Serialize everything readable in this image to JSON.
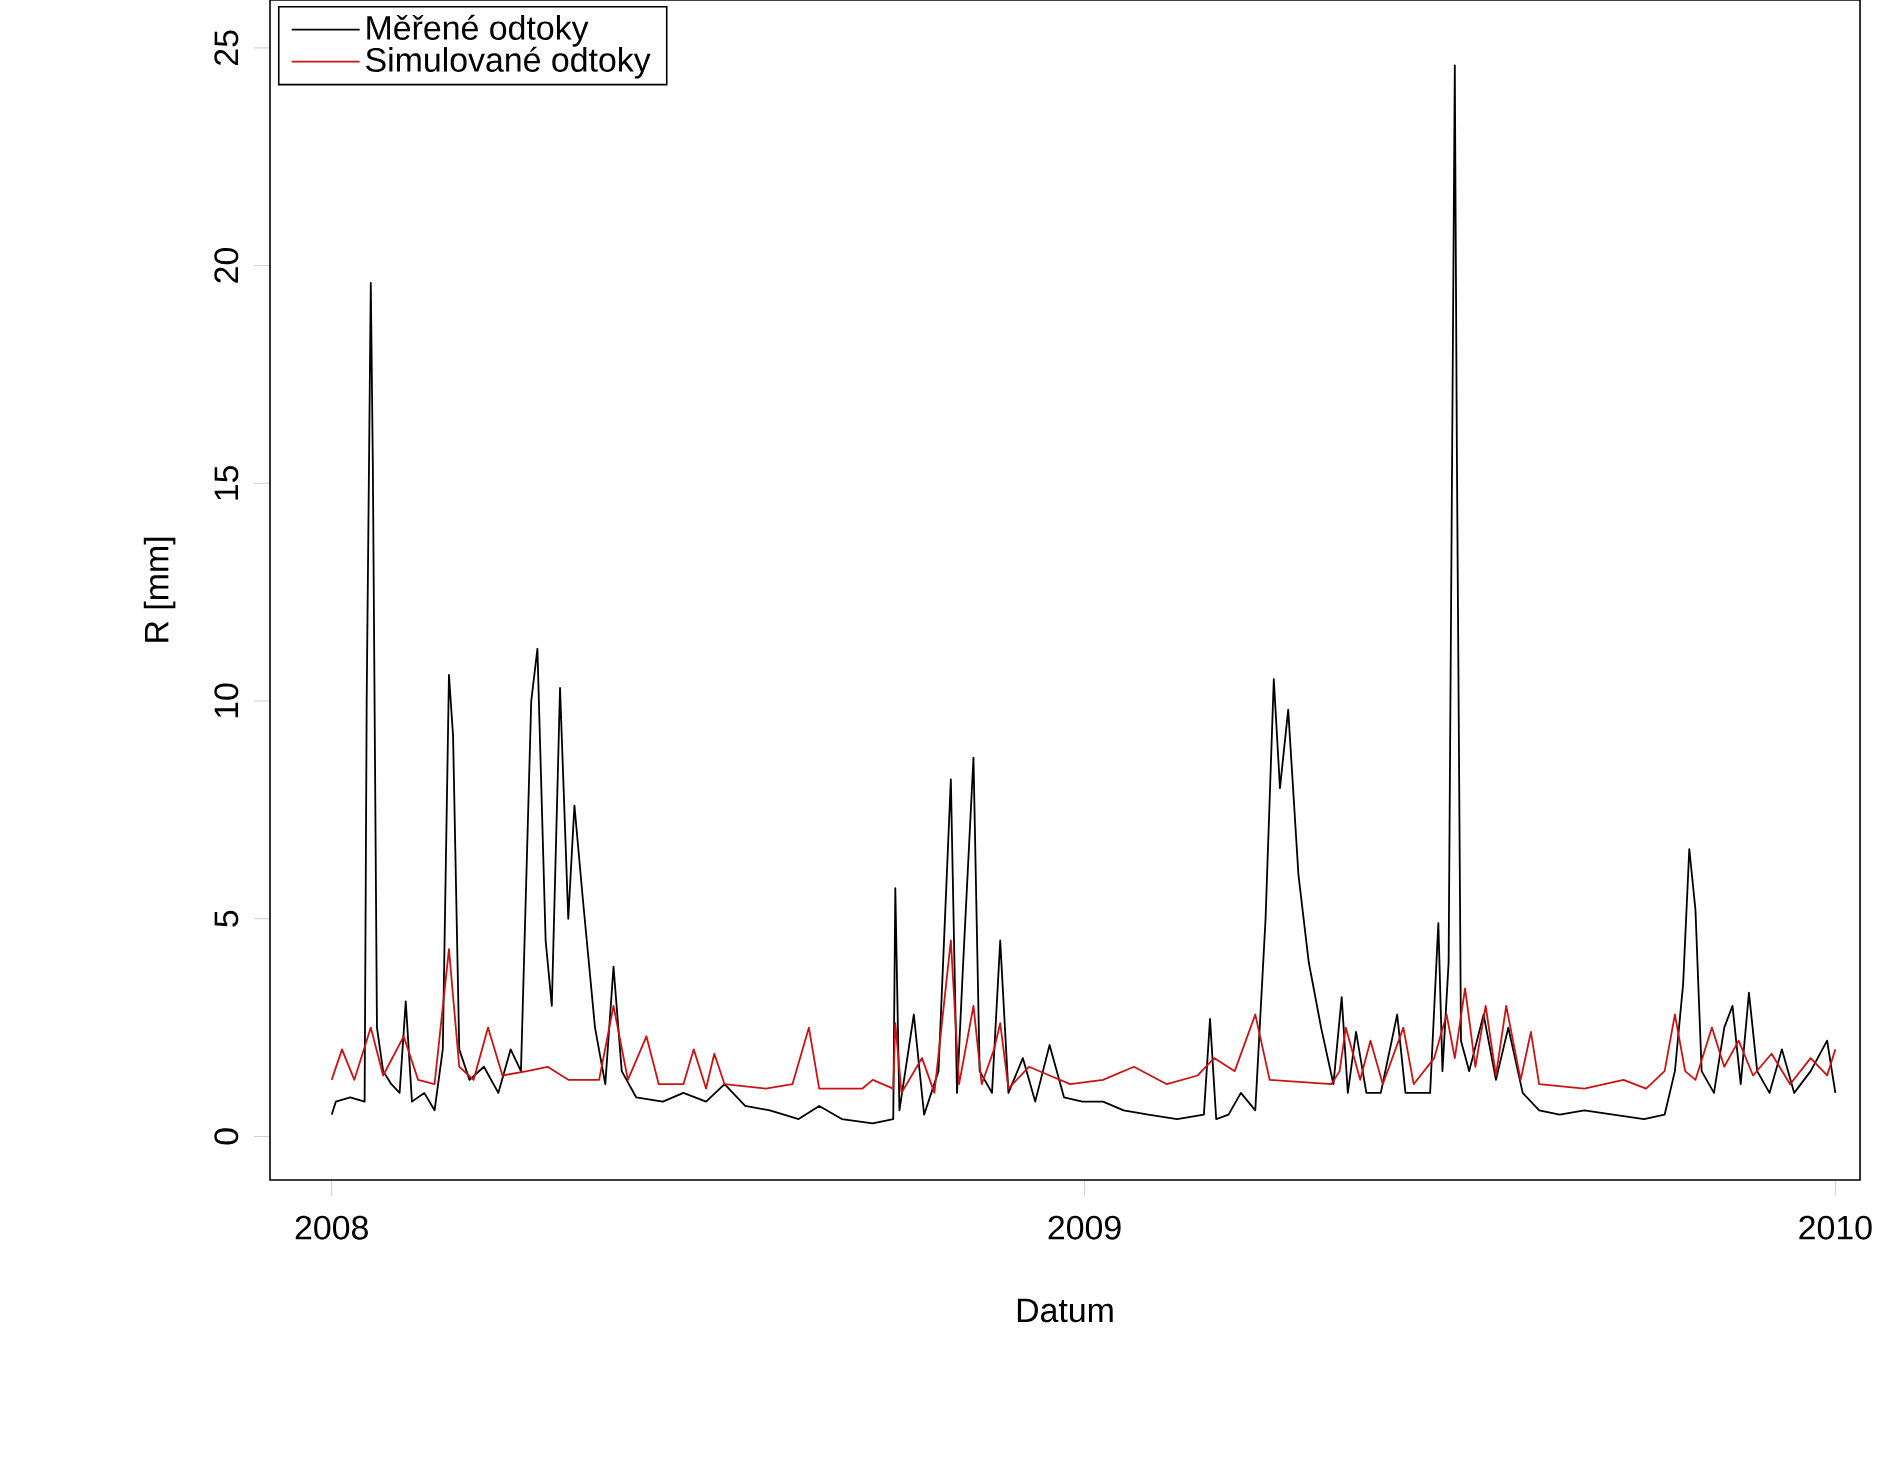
{
  "chart_data": {
    "type": "line",
    "xlabel": "Datum",
    "ylabel": "R [mm]",
    "legend": "top left",
    "line_style": "solid",
    "xlim": [
      "2007-12-02",
      "2010-01-13"
    ],
    "ylim": [
      -1,
      26.1
    ],
    "xticks": [
      {
        "value": "2008-01-01",
        "label": "2008"
      },
      {
        "value": "2009-01-01",
        "label": "2009"
      },
      {
        "value": "2010-01-01",
        "label": "2010"
      }
    ],
    "yticks": [
      0,
      5,
      10,
      15,
      20,
      25
    ],
    "series": [
      {
        "name": "Měřené odtoky",
        "color": "#000000",
        "x": [
          "2008-01-01",
          "2008-01-03",
          "2008-01-10",
          "2008-01-17",
          "2008-01-18",
          "2008-01-20",
          "2008-01-21",
          "2008-01-23",
          "2008-01-26",
          "2008-01-30",
          "2008-02-03",
          "2008-02-06",
          "2008-02-09",
          "2008-02-15",
          "2008-02-20",
          "2008-02-24",
          "2008-02-27",
          "2008-02-29",
          "2008-03-03",
          "2008-03-08",
          "2008-03-15",
          "2008-03-22",
          "2008-03-28",
          "2008-04-02",
          "2008-04-07",
          "2008-04-10",
          "2008-04-14",
          "2008-04-17",
          "2008-04-21",
          "2008-04-25",
          "2008-04-28",
          "2008-05-02",
          "2008-05-08",
          "2008-05-13",
          "2008-05-17",
          "2008-05-21",
          "2008-05-28",
          "2008-06-10",
          "2008-06-20",
          "2008-07-01",
          "2008-07-10",
          "2008-07-20",
          "2008-08-01",
          "2008-08-15",
          "2008-08-25",
          "2008-09-05",
          "2008-09-20",
          "2008-09-30",
          "2008-10-01",
          "2008-10-03",
          "2008-10-10",
          "2008-10-15",
          "2008-10-22",
          "2008-10-28",
          "2008-10-31",
          "2008-11-03",
          "2008-11-08",
          "2008-11-11",
          "2008-11-17",
          "2008-11-21",
          "2008-11-25",
          "2008-12-02",
          "2008-12-08",
          "2008-12-15",
          "2008-12-22",
          "2008-12-31",
          "2009-01-10",
          "2009-01-20",
          "2009-02-01",
          "2009-02-15",
          "2009-02-28",
          "2009-03-03",
          "2009-03-06",
          "2009-03-12",
          "2009-03-18",
          "2009-03-25",
          "2009-03-30",
          "2009-04-03",
          "2009-04-06",
          "2009-04-10",
          "2009-04-15",
          "2009-04-20",
          "2009-04-26",
          "2009-05-02",
          "2009-05-06",
          "2009-05-09",
          "2009-05-13",
          "2009-05-18",
          "2009-05-25",
          "2009-06-02",
          "2009-06-06",
          "2009-06-12",
          "2009-06-18",
          "2009-06-22",
          "2009-06-24",
          "2009-06-27",
          "2009-06-30",
          "2009-07-01",
          "2009-07-03",
          "2009-07-07",
          "2009-07-14",
          "2009-07-20",
          "2009-07-26",
          "2009-08-02",
          "2009-08-10",
          "2009-08-20",
          "2009-09-01",
          "2009-09-15",
          "2009-09-30",
          "2009-10-10",
          "2009-10-15",
          "2009-10-19",
          "2009-10-22",
          "2009-10-25",
          "2009-10-28",
          "2009-11-03",
          "2009-11-08",
          "2009-11-12",
          "2009-11-16",
          "2009-11-20",
          "2009-11-24",
          "2009-11-30",
          "2009-12-06",
          "2009-12-12",
          "2009-12-20",
          "2009-12-28",
          "2010-01-01"
        ],
        "values": [
          0.5,
          0.8,
          0.9,
          0.8,
          10.0,
          19.6,
          15.4,
          2.5,
          1.5,
          1.2,
          1.0,
          3.1,
          0.8,
          1.0,
          0.6,
          2.0,
          10.6,
          9.2,
          2.0,
          1.3,
          1.6,
          1.0,
          2.0,
          1.5,
          10.0,
          11.2,
          4.5,
          3.0,
          10.3,
          5.0,
          7.6,
          5.5,
          2.5,
          1.2,
          3.9,
          1.5,
          0.9,
          0.8,
          1.0,
          0.8,
          1.2,
          0.7,
          0.6,
          0.4,
          0.7,
          0.4,
          0.3,
          0.4,
          5.7,
          0.6,
          2.8,
          0.5,
          1.5,
          8.2,
          1.0,
          4.0,
          8.7,
          1.5,
          1.0,
          4.5,
          1.0,
          1.8,
          0.8,
          2.1,
          0.9,
          0.8,
          0.8,
          0.6,
          0.5,
          0.4,
          0.5,
          2.7,
          0.4,
          0.5,
          1.0,
          0.6,
          5.0,
          10.5,
          8.0,
          9.8,
          6.0,
          4.0,
          2.5,
          1.2,
          3.2,
          1.0,
          2.4,
          1.0,
          1.0,
          2.8,
          1.0,
          1.0,
          1.0,
          4.9,
          1.5,
          4.0,
          24.6,
          15.8,
          2.2,
          1.5,
          2.8,
          1.3,
          2.5,
          1.0,
          0.6,
          0.5,
          0.6,
          0.5,
          0.4,
          0.5,
          1.5,
          3.5,
          6.6,
          5.2,
          1.5,
          1.0,
          2.5,
          3.0,
          1.2,
          3.3,
          1.5,
          1.0,
          2.0,
          1.0,
          1.5,
          2.2,
          1.0
        ]
      },
      {
        "name": "Simulované odtoky",
        "color": "#c81414",
        "x": [
          "2008-01-01",
          "2008-01-06",
          "2008-01-12",
          "2008-01-20",
          "2008-01-26",
          "2008-02-05",
          "2008-02-12",
          "2008-02-20",
          "2008-02-27",
          "2008-03-03",
          "2008-03-10",
          "2008-03-17",
          "2008-03-24",
          "2008-04-05",
          "2008-04-15",
          "2008-04-25",
          "2008-05-10",
          "2008-05-17",
          "2008-05-24",
          "2008-06-02",
          "2008-06-08",
          "2008-06-20",
          "2008-06-25",
          "2008-07-01",
          "2008-07-05",
          "2008-07-10",
          "2008-07-30",
          "2008-08-12",
          "2008-08-20",
          "2008-08-25",
          "2008-09-15",
          "2008-09-20",
          "2008-09-30",
          "2008-10-01",
          "2008-10-04",
          "2008-10-14",
          "2008-10-20",
          "2008-10-28",
          "2008-11-01",
          "2008-11-08",
          "2008-11-12",
          "2008-11-18",
          "2008-11-21",
          "2008-11-25",
          "2008-12-05",
          "2008-12-15",
          "2008-12-25",
          "2009-01-10",
          "2009-01-25",
          "2009-02-10",
          "2009-02-25",
          "2009-03-05",
          "2009-03-15",
          "2009-03-25",
          "2009-04-01",
          "2009-05-01",
          "2009-05-05",
          "2009-05-08",
          "2009-05-15",
          "2009-05-20",
          "2009-05-26",
          "2009-06-05",
          "2009-06-10",
          "2009-06-20",
          "2009-06-26",
          "2009-06-30",
          "2009-07-05",
          "2009-07-10",
          "2009-07-15",
          "2009-07-20",
          "2009-07-25",
          "2009-08-01",
          "2009-08-06",
          "2009-08-10",
          "2009-09-01",
          "2009-09-20",
          "2009-10-01",
          "2009-10-10",
          "2009-10-15",
          "2009-10-20",
          "2009-10-25",
          "2009-11-02",
          "2009-11-08",
          "2009-11-15",
          "2009-11-22",
          "2009-12-01",
          "2009-12-10",
          "2009-12-20",
          "2009-12-28",
          "2010-01-01"
        ],
        "values": [
          1.3,
          2.0,
          1.3,
          2.5,
          1.4,
          2.3,
          1.3,
          1.2,
          4.3,
          1.6,
          1.3,
          2.5,
          1.4,
          1.5,
          1.6,
          1.3,
          1.3,
          3.0,
          1.3,
          2.3,
          1.2,
          1.2,
          2.0,
          1.1,
          1.9,
          1.2,
          1.1,
          1.2,
          2.5,
          1.1,
          1.1,
          1.3,
          1.1,
          2.6,
          1.0,
          1.8,
          1.0,
          4.5,
          1.2,
          3.0,
          1.2,
          2.0,
          2.6,
          1.1,
          1.6,
          1.4,
          1.2,
          1.3,
          1.6,
          1.2,
          1.4,
          1.8,
          1.5,
          2.8,
          1.3,
          1.2,
          1.5,
          2.5,
          1.3,
          2.2,
          1.2,
          2.5,
          1.2,
          1.8,
          2.8,
          1.8,
          3.4,
          1.6,
          3.0,
          1.4,
          3.0,
          1.3,
          2.4,
          1.2,
          1.1,
          1.3,
          1.1,
          1.5,
          2.8,
          1.5,
          1.3,
          2.5,
          1.6,
          2.2,
          1.4,
          1.9,
          1.2,
          1.8,
          1.4,
          2.0
        ]
      }
    ]
  }
}
